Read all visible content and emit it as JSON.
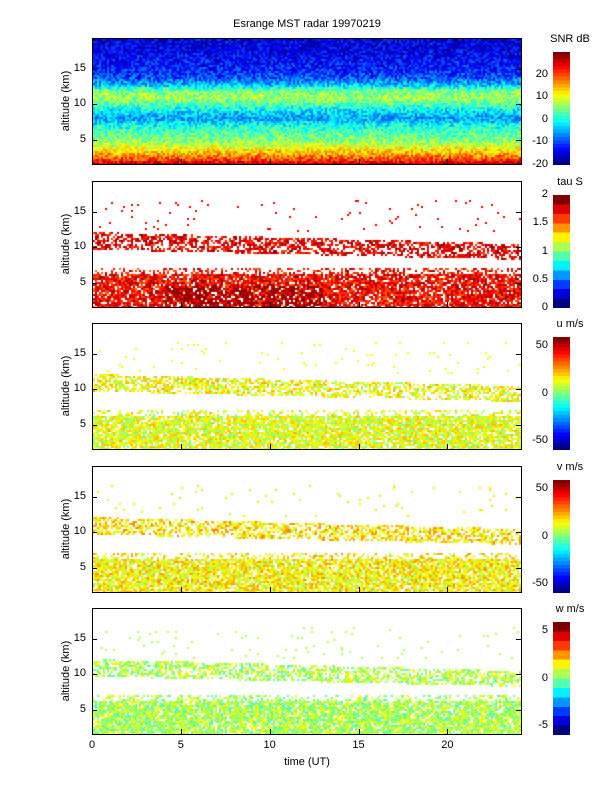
{
  "title": "Esrange MST radar 19970219",
  "chart_data": {
    "type": "heatmap",
    "title": "Esrange MST radar 19970219",
    "xlabel": "time (UT)",
    "xlim": [
      0,
      24.2
    ],
    "xticks": [
      "0",
      "5",
      "10",
      "15",
      "20"
    ],
    "xtick_values": [
      0,
      5,
      10,
      15,
      20
    ],
    "panels": [
      {
        "ylabel": "altitude (km)",
        "ylim": [
          1.4,
          19.4
        ],
        "yticks": [
          "5",
          "10",
          "15"
        ],
        "ytick_values": [
          5,
          10,
          15
        ],
        "colorbar_label": "SNR dB",
        "clim": [
          -20,
          30
        ],
        "cticks": [
          "-20",
          "-10",
          "0",
          "10",
          "20"
        ],
        "ctick_values": [
          -20,
          -10,
          0,
          10,
          20
        ],
        "profile_alt": [
          1.5,
          2,
          3,
          4,
          5,
          6,
          7,
          8,
          9,
          10,
          11,
          12,
          13,
          14,
          15,
          16,
          17,
          18,
          19.4
        ],
        "profile_value": [
          28,
          22,
          15,
          10,
          5,
          3,
          0,
          -6,
          -3,
          2,
          7,
          5,
          -5,
          -10,
          -12,
          -13,
          -14,
          -15,
          -15
        ],
        "fill": "full"
      },
      {
        "ylabel": "altitude (km)",
        "ylim": [
          1.4,
          19.4
        ],
        "yticks": [
          "5",
          "10",
          "15"
        ],
        "ytick_values": [
          5,
          10,
          15
        ],
        "colorbar_label": "tau S",
        "clim": [
          0,
          2
        ],
        "cticks": [
          "0",
          "0.5",
          "1",
          "1.5",
          "2"
        ],
        "ctick_values": [
          0,
          0.5,
          1,
          1.5,
          2
        ],
        "lower_layer_value": 1.75,
        "upper_layer_value": 1.8,
        "fill": "layers"
      },
      {
        "ylabel": "altitude (km)",
        "ylim": [
          1.4,
          19.4
        ],
        "yticks": [
          "5",
          "10",
          "15"
        ],
        "ytick_values": [
          5,
          10,
          15
        ],
        "colorbar_label": "u m/s",
        "clim": [
          -60,
          60
        ],
        "cticks": [
          "-50",
          "0",
          "50"
        ],
        "ctick_values": [
          -50,
          0,
          50
        ],
        "lower_layer_value": 12,
        "upper_layer_value": 14,
        "fill": "layers"
      },
      {
        "ylabel": "altitude (km)",
        "ylim": [
          1.4,
          19.4
        ],
        "yticks": [
          "5",
          "10",
          "15"
        ],
        "ytick_values": [
          5,
          10,
          15
        ],
        "colorbar_label": "v m/s",
        "clim": [
          -60,
          60
        ],
        "cticks": [
          "-50",
          "0",
          "50"
        ],
        "ctick_values": [
          -50,
          0,
          50
        ],
        "lower_layer_value": 16,
        "upper_layer_value": 18,
        "fill": "layers"
      },
      {
        "ylabel": "altitude (km)",
        "ylim": [
          1.4,
          19.4
        ],
        "yticks": [
          "5",
          "10",
          "15"
        ],
        "ytick_values": [
          5,
          10,
          15
        ],
        "colorbar_label": "w m/s",
        "clim": [
          -6,
          6
        ],
        "cticks": [
          "-5",
          "0",
          "5"
        ],
        "ctick_values": [
          -5,
          0,
          5
        ],
        "lower_layer_value": 0.5,
        "upper_layer_value": 0.6,
        "fill": "layers"
      }
    ]
  }
}
